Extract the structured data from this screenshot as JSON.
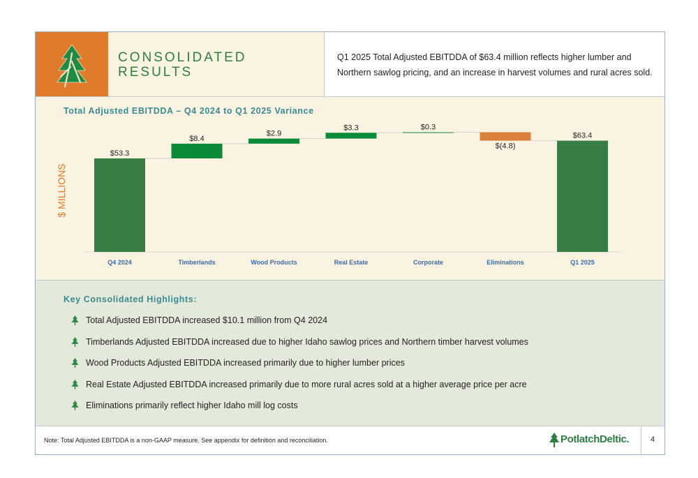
{
  "header": {
    "title": "CONSOLIDATED\nRESULTS",
    "description": "Q1 2025 Total Adjusted EBITDDA of $63.4 million reflects higher lumber and Northern sawlog pricing, and an increase in harvest volumes and rural acres sold."
  },
  "chart_data": {
    "type": "bar",
    "subtype": "waterfall",
    "title": "Total Adjusted EBITDDA – Q4 2024 to Q1 2025 Variance",
    "ylabel": "$ MILLIONS",
    "xlabel": "",
    "categories": [
      "Q4 2024",
      "Timberlands",
      "Wood Products",
      "Real Estate",
      "Corporate",
      "Eliminations",
      "Q1 2025"
    ],
    "values": [
      53.3,
      8.4,
      2.9,
      3.3,
      0.3,
      -4.8,
      63.4
    ],
    "kinds": [
      "total",
      "delta",
      "delta",
      "delta",
      "delta",
      "delta",
      "total"
    ],
    "data_labels": [
      "$53.3",
      "$8.4",
      "$2.9",
      "$3.3",
      "$0.3",
      "$(4.8)",
      "$63.4"
    ],
    "ylim": [
      0,
      70
    ],
    "grid": false,
    "colors": {
      "total": "#3a7d44",
      "increase": "#0b8a38",
      "decrease": "#d9813a"
    }
  },
  "highlights": {
    "title": "Key Consolidated Highlights:",
    "items": [
      "Total Adjusted EBITDDA increased $10.1 million from Q4 2024",
      "Timberlands Adjusted EBITDDA increased due to higher Idaho sawlog prices and Northern timber harvest volumes",
      "Wood Products Adjusted EBITDDA increased primarily due to higher lumber prices",
      "Real Estate Adjusted EBITDDA increased primarily due to more rural acres sold at a higher average price per acre",
      "Eliminations primarily reflect higher Idaho mill log costs"
    ]
  },
  "footer": {
    "note": "Note: Total Adjusted EBITDDA is a non-GAAP measure. See appendix for definition and reconciliation.",
    "brand": "PotlatchDeltic.",
    "page": "4"
  },
  "icons": {
    "logo": "tree-logo-icon",
    "bullet": "tree-bullet-icon",
    "brand": "brand-tree-icon"
  },
  "colors": {
    "orange": "#e07b2b",
    "green": "#2e7d42",
    "teal": "#3a8a92"
  }
}
